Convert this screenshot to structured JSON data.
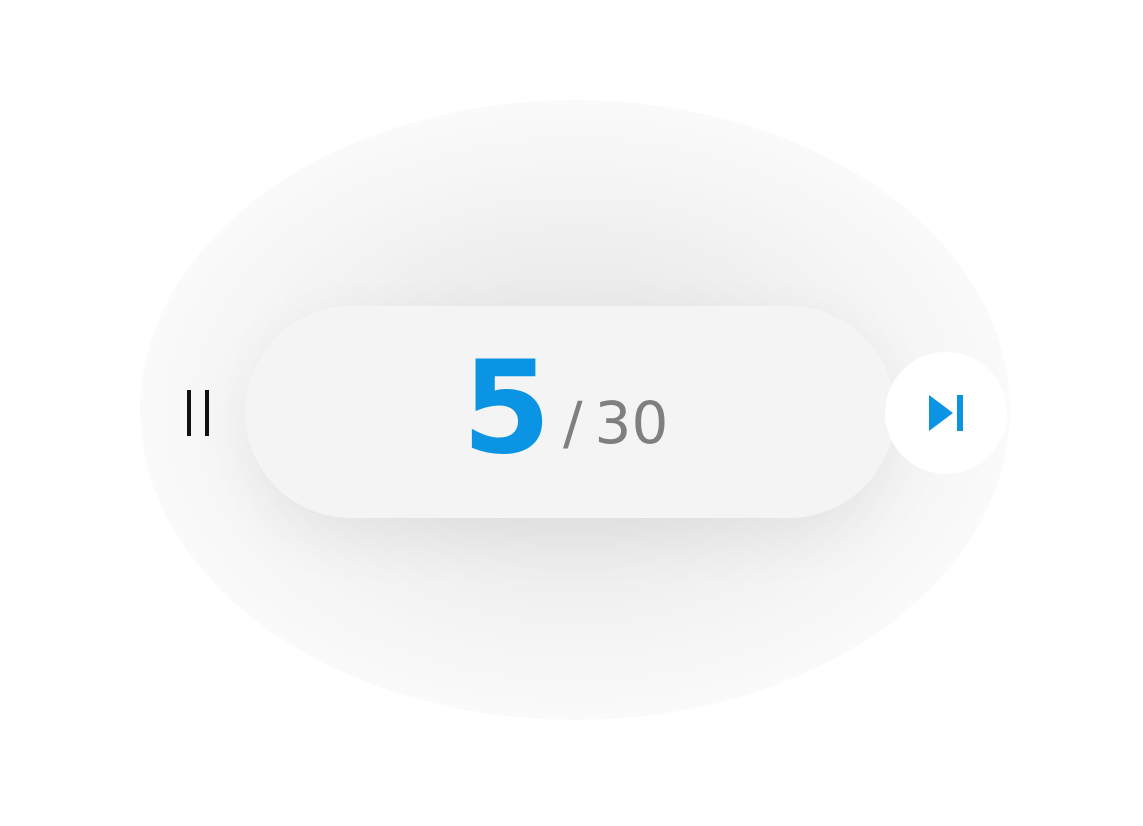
{
  "player": {
    "current_index": "5",
    "separator": "/",
    "total_count": "30",
    "accent_color": "#0b94e3",
    "total_color": "#7f7f7f",
    "pause_icon": "pause-icon",
    "skip_icon": "skip-next-icon"
  }
}
